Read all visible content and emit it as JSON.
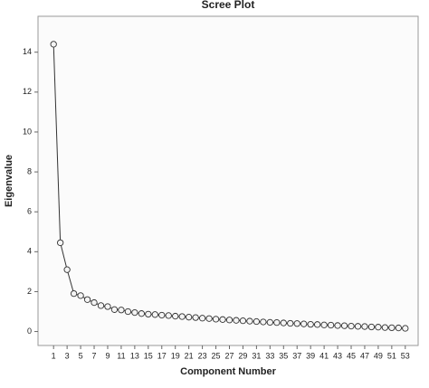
{
  "chart_data": {
    "type": "line",
    "title": "Scree Plot",
    "x_label": "Component Number",
    "y_label": "Eigenvalue",
    "x": [
      1,
      2,
      3,
      4,
      5,
      6,
      7,
      8,
      9,
      10,
      11,
      12,
      13,
      14,
      15,
      16,
      17,
      18,
      19,
      20,
      21,
      22,
      23,
      24,
      25,
      26,
      27,
      28,
      29,
      30,
      31,
      32,
      33,
      34,
      35,
      36,
      37,
      38,
      39,
      40,
      41,
      42,
      43,
      44,
      45,
      46,
      47,
      48,
      49,
      50,
      51,
      52,
      53
    ],
    "values": [
      14.4,
      4.45,
      3.1,
      1.9,
      1.8,
      1.6,
      1.45,
      1.3,
      1.25,
      1.1,
      1.08,
      1.0,
      0.95,
      0.9,
      0.87,
      0.85,
      0.82,
      0.8,
      0.77,
      0.75,
      0.72,
      0.7,
      0.67,
      0.65,
      0.62,
      0.6,
      0.58,
      0.56,
      0.54,
      0.52,
      0.5,
      0.48,
      0.46,
      0.45,
      0.43,
      0.41,
      0.4,
      0.38,
      0.36,
      0.35,
      0.33,
      0.32,
      0.3,
      0.29,
      0.27,
      0.26,
      0.25,
      0.23,
      0.22,
      0.2,
      0.19,
      0.18,
      0.16
    ],
    "color": "#333333",
    "xlim": [
      -1.3,
      54.9
    ],
    "xticks": [
      1,
      3,
      5,
      7,
      9,
      11,
      13,
      15,
      17,
      19,
      21,
      23,
      25,
      27,
      29,
      31,
      33,
      35,
      37,
      39,
      41,
      43,
      45,
      47,
      49,
      51,
      53
    ],
    "ylim": [
      -0.7,
      15.8
    ],
    "yticks": [
      0,
      2,
      4,
      6,
      8,
      10,
      12,
      14
    ],
    "grid": false
  }
}
